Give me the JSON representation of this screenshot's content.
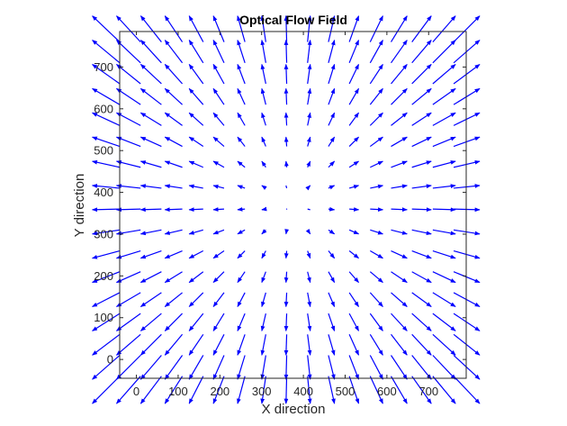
{
  "chart_data": {
    "type": "quiver",
    "title": "Optical Flow Field",
    "xlabel": "X direction",
    "ylabel": "Y direction",
    "xlim": [
      -40,
      790
    ],
    "ylim": [
      -45,
      785
    ],
    "xticks": [
      0,
      100,
      200,
      300,
      400,
      500,
      600,
      700
    ],
    "yticks": [
      0,
      100,
      200,
      300,
      400,
      500,
      600,
      700
    ],
    "grid": false,
    "arrow_color": "#0000ff",
    "field": {
      "description": "radial expansion from center",
      "center": [
        370,
        370
      ],
      "x_start": -40,
      "y_start": -40,
      "step": 50,
      "count": 17,
      "scale": 0.16
    }
  }
}
